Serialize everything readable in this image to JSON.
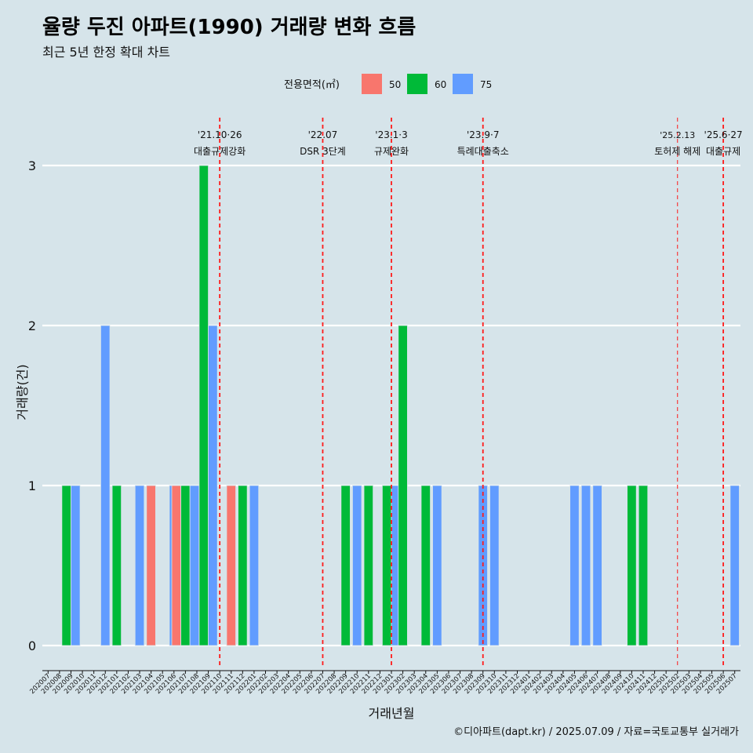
{
  "title": "율량 두진 아파트(1990) 거래량 변화 흐름",
  "subtitle": "최근 5년 한정 확대 차트",
  "caption": "©디아파트(dapt.kr) / 2025.07.09 / 자료=국토교통부 실거래가",
  "legend": {
    "title": "전용면적(㎡)",
    "items": [
      {
        "label": "50",
        "color": "#f8766d"
      },
      {
        "label": "60",
        "color": "#00ba38"
      },
      {
        "label": "75",
        "color": "#619cff"
      }
    ]
  },
  "chart_data": {
    "type": "bar",
    "title": "율량 두진 아파트(1990) 거래량 변화 흐름",
    "subtitle": "최근 5년 한정 확대 차트",
    "xlabel": "거래년월",
    "ylabel": "거래량(건)",
    "ylim": [
      0,
      3
    ],
    "yticks": [
      0,
      1,
      2,
      3
    ],
    "grid": "horizontal",
    "legend_position": "top",
    "categories": [
      "202007",
      "202008",
      "202009",
      "202010",
      "202011",
      "202012",
      "202101",
      "202102",
      "202103",
      "202104",
      "202105",
      "202106",
      "202107",
      "202108",
      "202109",
      "202110",
      "202111",
      "202112",
      "202201",
      "202202",
      "202203",
      "202204",
      "202205",
      "202206",
      "202207",
      "202208",
      "202209",
      "202210",
      "202211",
      "202212",
      "202301",
      "202302",
      "202303",
      "202304",
      "202305",
      "202306",
      "202307",
      "202308",
      "202309",
      "202310",
      "202311",
      "202312",
      "202401",
      "202402",
      "202403",
      "202404",
      "202405",
      "202406",
      "202407",
      "202408",
      "202409",
      "202410",
      "202411",
      "202412",
      "202501",
      "202502",
      "202503",
      "202504",
      "202505",
      "202506",
      "202507"
    ],
    "series": [
      {
        "name": "50",
        "color": "#f8766d",
        "values": [
          0,
          0,
          0,
          0,
          0,
          0,
          0,
          0,
          0,
          1,
          0,
          0,
          1,
          0,
          0,
          0,
          1,
          0,
          0,
          0,
          0,
          0,
          0,
          0,
          0,
          0,
          0,
          0,
          0,
          0,
          0,
          0,
          0,
          0,
          0,
          0,
          0,
          0,
          0,
          0,
          0,
          0,
          0,
          0,
          0,
          0,
          0,
          0,
          0,
          0,
          0,
          0,
          0,
          0,
          0,
          0,
          0,
          0,
          0,
          0,
          0
        ]
      },
      {
        "name": "60",
        "color": "#00ba38",
        "values": [
          0,
          0,
          1,
          0,
          0,
          0,
          1,
          0,
          0,
          0,
          0,
          0,
          1,
          0,
          3,
          0,
          0,
          1,
          0,
          0,
          0,
          0,
          0,
          0,
          0,
          0,
          1,
          0,
          1,
          0,
          1,
          2,
          0,
          1,
          0,
          0,
          0,
          0,
          0,
          0,
          0,
          0,
          0,
          0,
          0,
          0,
          0,
          0,
          0,
          0,
          0,
          1,
          1,
          0,
          0,
          0,
          0,
          0,
          0,
          0,
          0
        ]
      },
      {
        "name": "75",
        "color": "#619cff",
        "values": [
          0,
          0,
          1,
          0,
          0,
          2,
          0,
          0,
          1,
          0,
          0,
          1,
          1,
          0,
          2,
          0,
          0,
          0,
          1,
          0,
          0,
          0,
          0,
          0,
          0,
          0,
          0,
          1,
          0,
          0,
          1,
          0,
          0,
          0,
          1,
          0,
          0,
          0,
          1,
          1,
          0,
          0,
          0,
          0,
          0,
          0,
          1,
          1,
          1,
          0,
          0,
          0,
          0,
          0,
          0,
          0,
          0,
          0,
          0,
          0,
          1
        ]
      }
    ],
    "annotations": [
      {
        "date": "202110",
        "date_label": "'21.10·26",
        "text": "대출규제강화"
      },
      {
        "date": "202207",
        "date_label": "'22.07",
        "text": "DSR 3단계"
      },
      {
        "date": "202301",
        "date_label": "'23.1·3",
        "text": "규제완화"
      },
      {
        "date": "202309",
        "date_label": "'23.9·7",
        "text": "특례대출축소"
      },
      {
        "date": "202502",
        "date_label": "'25.2.13",
        "text": "토허제 해제"
      },
      {
        "date": "202506",
        "date_label": "'25.6·27",
        "text": "대출규제"
      }
    ]
  }
}
